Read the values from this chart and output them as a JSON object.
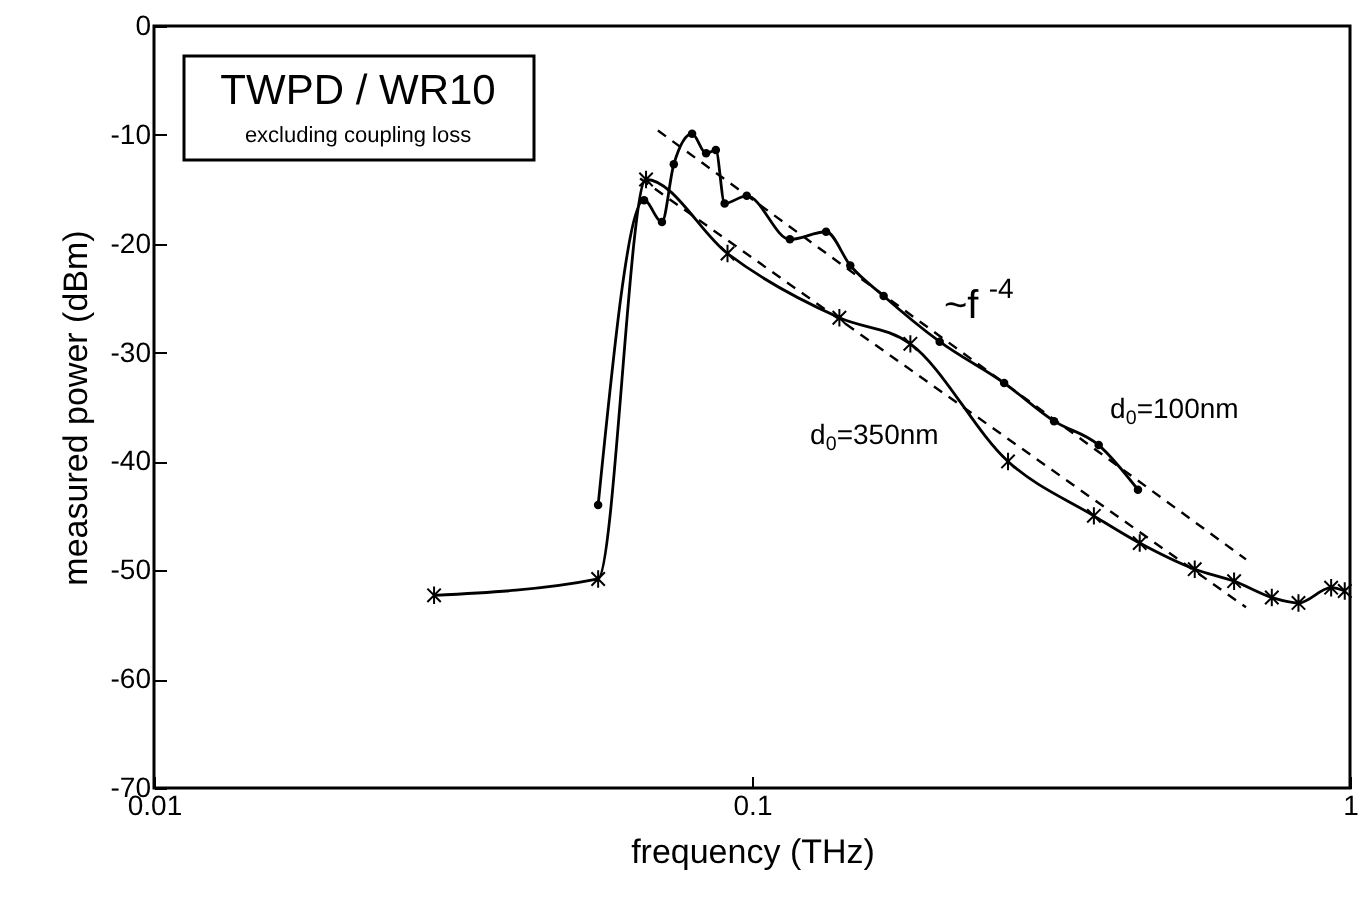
{
  "chart_data": {
    "type": "line",
    "xlabel": "frequency (THz)",
    "ylabel": "measured power (dBm)",
    "log": "x",
    "xlim": [
      0.01,
      1
    ],
    "xticks": [
      0.01,
      0.1,
      1
    ],
    "ylim": [
      -70,
      0
    ],
    "yticks": [
      -70,
      -60,
      -50,
      -40,
      -30,
      -20,
      -10,
      0
    ],
    "grid": false,
    "annotations": [
      "TWPD / WR10",
      "excluding coupling loss",
      "~f$^{-4}$"
    ],
    "series": [
      {
        "name": "d$_{0}$=100nm",
        "color": "#000000",
        "marker": "circle",
        "x": [
          0.0553,
          0.066,
          0.0707,
          0.074,
          0.0794,
          0.0838,
          0.087,
          0.09,
          0.098,
          0.1157,
          0.133,
          0.146,
          0.166,
          0.206,
          0.264,
          0.32,
          0.38,
          0.442
        ],
        "values": [
          -44.0,
          -16.0,
          -18.0,
          -12.7,
          -9.9,
          -11.7,
          -11.4,
          -16.3,
          -15.6,
          -19.6,
          -18.9,
          -22.0,
          -24.8,
          -29.0,
          -32.8,
          -36.3,
          -38.5,
          -42.6
        ]
      },
      {
        "name": "d$_{0}$=350nm",
        "color": "#000000",
        "marker": "cross",
        "x": [
          0.0294,
          0.0553,
          0.0665,
          0.091,
          0.14,
          0.184,
          0.268,
          0.373,
          0.445,
          0.55,
          0.64,
          0.74,
          0.82,
          0.93,
          0.98
        ],
        "values": [
          -52.3,
          -50.8,
          -14.1,
          -20.9,
          -26.8,
          -29.2,
          -40.0,
          -45.0,
          -47.5,
          -49.9,
          -51.0,
          -52.5,
          -53.0,
          -51.6,
          -51.9
        ]
      },
      {
        "type": "line",
        "color": "#000000",
        "line_style": "dashed",
        "x": [
          0.0696,
          0.67
        ],
        "values": [
          -9.6,
          -49.0
        ]
      },
      {
        "type": "line",
        "color": "#000000",
        "line_style": "dashed",
        "x": [
          0.065,
          0.67
        ],
        "values": [
          -14.0,
          -53.4
        ]
      }
    ]
  }
}
